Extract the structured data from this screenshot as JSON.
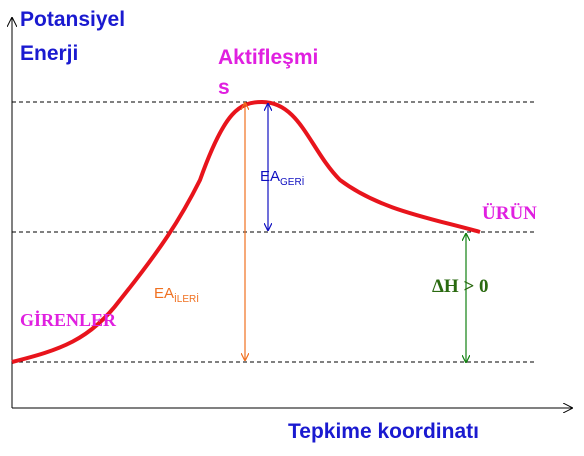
{
  "axis_labels": {
    "y": [
      "Potansiyel",
      "Enerji"
    ],
    "x": "Tepkime koordinatı"
  },
  "transition_state": [
    "Aktifleşmi",
    "s"
  ],
  "ea_reverse": {
    "main": "EA",
    "sub": "GERİ"
  },
  "ea_forward": {
    "main": "EA",
    "sub": "İLERİ"
  },
  "products": "ÜRÜN",
  "reactants": "GİRENLER",
  "enthalpy": "ΔH > 0"
}
